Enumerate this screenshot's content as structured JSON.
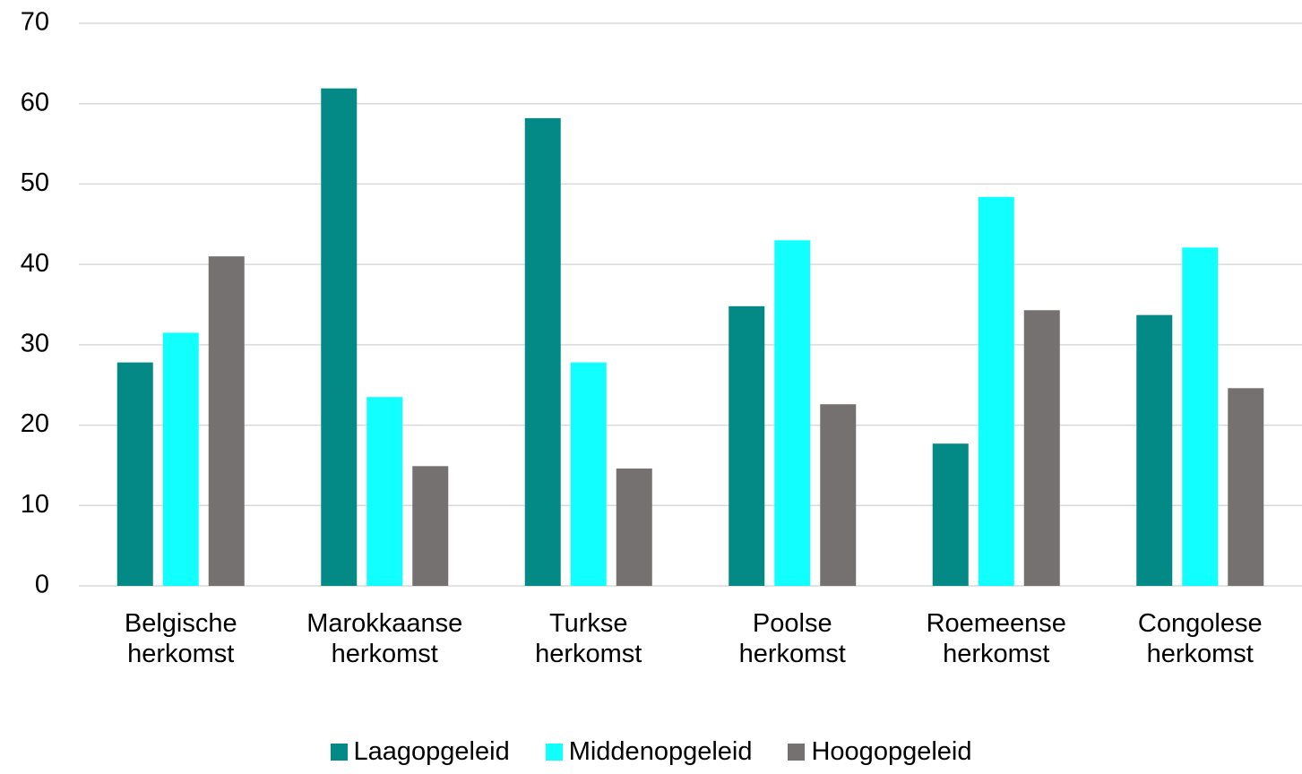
{
  "chart_data": {
    "type": "bar",
    "categories": [
      "Belgische herkomst",
      "Marokkaanse herkomst",
      "Turkse herkomst",
      "Poolse herkomst",
      "Roemeense herkomst",
      "Congolese herkomst"
    ],
    "series": [
      {
        "name": "Laagopgeleid",
        "color": "#038a87",
        "values": [
          27.8,
          61.9,
          58.2,
          34.8,
          17.7,
          33.7
        ]
      },
      {
        "name": "Middenopgeleid",
        "color": "#12ffff",
        "values": [
          31.5,
          23.5,
          27.8,
          43.0,
          48.4,
          42.1
        ]
      },
      {
        "name": "Hoogopgeleid",
        "color": "#767171",
        "values": [
          41.0,
          14.9,
          14.6,
          22.6,
          34.3,
          24.6
        ]
      }
    ],
    "ylim": [
      0,
      70
    ],
    "yticks": [
      0,
      10,
      20,
      30,
      40,
      50,
      60,
      70
    ],
    "grid": true,
    "legend": "bottom"
  }
}
